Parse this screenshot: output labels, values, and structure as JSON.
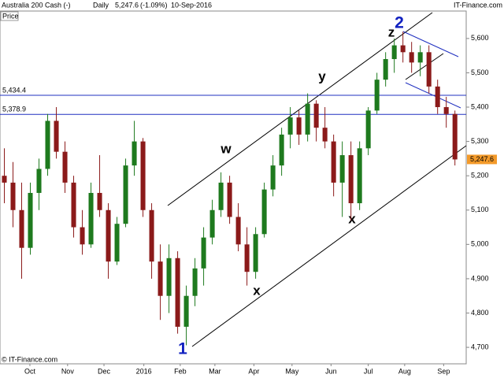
{
  "chart_data": {
    "type": "candlestick",
    "title": "Australia 200 Cash (-)",
    "interval": "Daily",
    "header_price": "5,247.6",
    "change": "(-1.09%)",
    "date": "10-Sep-2016",
    "source": "IT-Finance.com",
    "copyright": "© IT-Finance.com",
    "y_label": "Price",
    "xlim": [
      -0.5,
      53.3
    ],
    "xticks": [
      {
        "value": 2.95,
        "label": "Oct"
      },
      {
        "value": 7.3,
        "label": "Nov"
      },
      {
        "value": 11.5,
        "label": "Dec"
      },
      {
        "value": 16.1,
        "label": "2016"
      },
      {
        "value": 20.3,
        "label": "Feb"
      },
      {
        "value": 24.3,
        "label": "Mar"
      },
      {
        "value": 28.8,
        "label": "Apr"
      },
      {
        "value": 33.2,
        "label": "May"
      },
      {
        "value": 37.7,
        "label": "Jun"
      },
      {
        "value": 42,
        "label": "Jul"
      },
      {
        "value": 46.2,
        "label": "Aug"
      },
      {
        "value": 50.7,
        "label": "Sep"
      }
    ],
    "ylim": [
      4652,
      5680
    ],
    "yticks": [
      {
        "value": 4700,
        "label": "4,700"
      },
      {
        "value": 4800,
        "label": "4,800"
      },
      {
        "value": 4900,
        "label": "4,900"
      },
      {
        "value": 5000,
        "label": "5,000"
      },
      {
        "value": 5100,
        "label": "5,100"
      },
      {
        "value": 5200,
        "label": "5,200"
      },
      {
        "value": 5300,
        "label": "5,300"
      },
      {
        "value": 5400,
        "label": "5,400"
      },
      {
        "value": 5500,
        "label": "5,500"
      },
      {
        "value": 5600,
        "label": "5,600"
      }
    ],
    "up_color": "#1e7a1e",
    "down_color": "#8b1a1a",
    "ohlc": [
      [
        5200,
        5280,
        5120,
        5180
      ],
      [
        5180,
        5240,
        5050,
        5100
      ],
      [
        5100,
        5180,
        4900,
        4990
      ],
      [
        4990,
        5180,
        4970,
        5150
      ],
      [
        5150,
        5250,
        5100,
        5220
      ],
      [
        5220,
        5380,
        5200,
        5360
      ],
      [
        5360,
        5400,
        5250,
        5270
      ],
      [
        5270,
        5300,
        5150,
        5180
      ],
      [
        5180,
        5200,
        5020,
        5050
      ],
      [
        5050,
        5100,
        4970,
        5000
      ],
      [
        5000,
        5180,
        4990,
        5150
      ],
      [
        5150,
        5260,
        5080,
        5100
      ],
      [
        5100,
        5120,
        4900,
        4950
      ],
      [
        4950,
        5080,
        4940,
        5060
      ],
      [
        5060,
        5250,
        5050,
        5230
      ],
      [
        5230,
        5360,
        5200,
        5300
      ],
      [
        5300,
        5310,
        5080,
        5100
      ],
      [
        5100,
        5120,
        4900,
        4950
      ],
      [
        4950,
        5000,
        4780,
        4850
      ],
      [
        4850,
        5000,
        4800,
        4960
      ],
      [
        4960,
        4980,
        4740,
        4760
      ],
      [
        4760,
        4880,
        4706,
        4850
      ],
      [
        4850,
        4960,
        4820,
        4930
      ],
      [
        4930,
        5050,
        4880,
        5020
      ],
      [
        5020,
        5130,
        5000,
        5100
      ],
      [
        5100,
        5210,
        5080,
        5180
      ],
      [
        5180,
        5200,
        5060,
        5080
      ],
      [
        5080,
        5120,
        4980,
        5000
      ],
      [
        5000,
        5050,
        4880,
        4920
      ],
      [
        4920,
        5050,
        4900,
        5030
      ],
      [
        5030,
        5180,
        5020,
        5160
      ],
      [
        5160,
        5260,
        5140,
        5230
      ],
      [
        5230,
        5340,
        5200,
        5320
      ],
      [
        5320,
        5400,
        5280,
        5370
      ],
      [
        5370,
        5390,
        5290,
        5320
      ],
      [
        5320,
        5440,
        5300,
        5410
      ],
      [
        5410,
        5420,
        5300,
        5340
      ],
      [
        5340,
        5400,
        5280,
        5300
      ],
      [
        5300,
        5320,
        5140,
        5180
      ],
      [
        5180,
        5300,
        5080,
        5260
      ],
      [
        5260,
        5300,
        5070,
        5120
      ],
      [
        5120,
        5300,
        5100,
        5280
      ],
      [
        5280,
        5400,
        5260,
        5390
      ],
      [
        5390,
        5500,
        5380,
        5480
      ],
      [
        5480,
        5560,
        5460,
        5540
      ],
      [
        5540,
        5600,
        5500,
        5580
      ],
      [
        5580,
        5620,
        5530,
        5560
      ],
      [
        5560,
        5590,
        5500,
        5530
      ],
      [
        5530,
        5580,
        5490,
        5560
      ],
      [
        5560,
        5580,
        5440,
        5460
      ],
      [
        5460,
        5480,
        5380,
        5400
      ],
      [
        5400,
        5430,
        5340,
        5380
      ],
      [
        5380,
        5390,
        5230,
        5247.6
      ]
    ],
    "levels": [
      {
        "value": 5434.4,
        "label": "5,434.4"
      },
      {
        "value": 5378.9,
        "label": "5,378.9"
      }
    ],
    "last": {
      "value": 5247.6,
      "label": "5,247.6"
    },
    "waves": [
      "1",
      "2",
      "w",
      "x",
      "y",
      "x",
      "z"
    ]
  }
}
